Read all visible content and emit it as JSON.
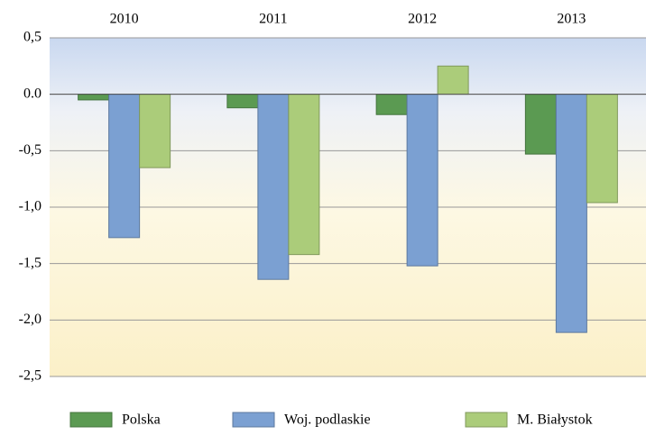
{
  "chart_data": {
    "type": "bar",
    "categories": [
      "2010",
      "2011",
      "2012",
      "2013"
    ],
    "series": [
      {
        "name": "Polska",
        "color": "#5b9a52",
        "values": [
          -0.05,
          -0.12,
          -0.18,
          -0.53
        ]
      },
      {
        "name": "Woj. podlaskie",
        "color": "#7ba0d2",
        "values": [
          -1.27,
          -1.64,
          -1.52,
          -2.11
        ]
      },
      {
        "name": "M. Białystok",
        "color": "#abcc7a",
        "values": [
          -0.65,
          -1.42,
          0.25,
          -0.96
        ]
      }
    ],
    "ylim": [
      -2.5,
      0.5
    ],
    "yticks": [
      {
        "value": 0.5,
        "label": "0,5"
      },
      {
        "value": 0,
        "label": "0.0"
      },
      {
        "value": -0.5,
        "label": "-0,5"
      },
      {
        "value": -1,
        "label": "-1,0"
      },
      {
        "value": -1.5,
        "label": "-1,5"
      },
      {
        "value": -2,
        "label": "-2,0"
      },
      {
        "value": -2.5,
        "label": "-2,5"
      }
    ],
    "grid": true,
    "legend": "bottom"
  }
}
